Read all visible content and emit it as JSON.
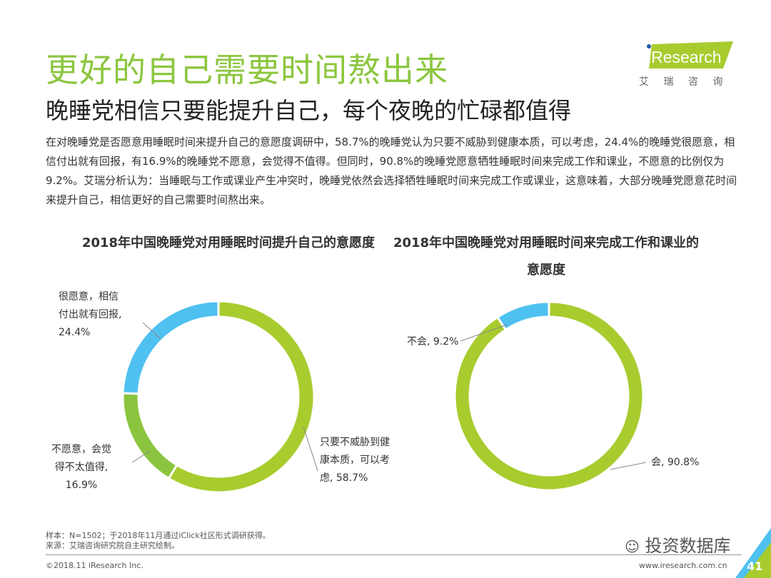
{
  "title": "更好的自己需要时间熬出来",
  "subtitle": "晚睡党相信只要能提升自己，每个夜晚的忙碌都值得",
  "body": "在对晚睡党是否愿意用睡眠时间来提升自己的意愿度调研中，58.7%的晚睡党认为只要不威胁到健康本质，可以考虑，24.4%的晚睡党很愿意，相信付出就有回报，有16.9%的晚睡党不愿意，会觉得不值得。但同时，90.8%的晚睡党愿意牺牲睡眠时间来完成工作和课业，不愿意的比例仅为9.2%。艾瑞分析认为：当睡眠与工作或课业产生冲突时，晚睡党依然会选择牺牲睡眠时间来完成工作或课业，这意味着，大部分晚睡党愿意花时间来提升自己，相信更好的自己需要时间熬出来。",
  "logo": {
    "brand": "iResearch",
    "cn": "艾 瑞 咨 询"
  },
  "footer": {
    "sample": "样本：N=1502；于2018年11月通过iClick社区形式调研获得。",
    "source": "来源：艾瑞咨询研究院自主研究绘制。",
    "copyright": "©2018.11 iResearch Inc.",
    "url": "www.iresearch.com.cn",
    "page": "41",
    "watermark": "投资数据库"
  },
  "colors": {
    "green": "#a8cc2e",
    "lightgreen": "#8bc53f",
    "blue": "#4fc1f0",
    "title": "#8cc63f"
  },
  "chart_data": [
    {
      "type": "pie",
      "title": "2018年中国晚睡党对用睡眠时间提升自己的意愿度",
      "slices": [
        {
          "label": "只要不威胁到健康本质，可以考虑, 58.7%",
          "value": 58.7,
          "color": "#a8cc2e"
        },
        {
          "label": "不愿意，会觉得不太值得, 16.9%",
          "value": 16.9,
          "color": "#8bc53f"
        },
        {
          "label": "很愿意，相信付出就有回报, 24.4%",
          "value": 24.4,
          "color": "#4fc1f0"
        }
      ]
    },
    {
      "type": "pie",
      "title": "2018年中国晚睡党对用睡眠时间来完成工作和课业的意愿度",
      "slices": [
        {
          "label": "会, 90.8%",
          "value": 90.8,
          "color": "#a8cc2e"
        },
        {
          "label": "不会, 9.2%",
          "value": 9.2,
          "color": "#4fc1f0"
        }
      ]
    }
  ],
  "labels1": {
    "a1": "只要不威胁到健",
    "a2": "康本质，可以考",
    "a3": "虑, 58.7%",
    "b1": "不愿意，会觉",
    "b2": "得不太值得,",
    "b3": "16.9%",
    "c1": "很愿意，相信",
    "c2": "付出就有回报,",
    "c3": "24.4%"
  },
  "labels2": {
    "a": "会, 90.8%",
    "b": "不会, 9.2%"
  }
}
